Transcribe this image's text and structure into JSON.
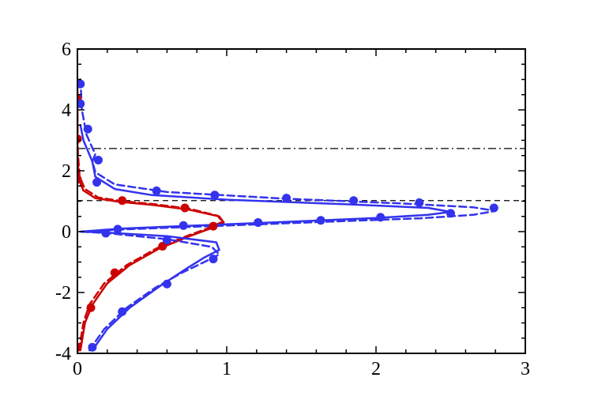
{
  "chart_data": {
    "type": "line",
    "title": "",
    "xlabel": "",
    "ylabel": "",
    "xlim": [
      0,
      3
    ],
    "ylim": [
      -4,
      6
    ],
    "grid": false,
    "legend": "none",
    "x_ticks": [
      0,
      1,
      2,
      3
    ],
    "y_ticks": [
      -4,
      -2,
      0,
      2,
      4,
      6
    ],
    "reference_lines": [
      {
        "style": "dash-dot",
        "y": 2.73,
        "color": "#000000"
      },
      {
        "style": "dashed",
        "y": 1.02,
        "color": "#000000"
      }
    ],
    "series": [
      {
        "color": "#cc0000",
        "style": "solid",
        "points": [
          [
            0.02,
            -3.9
          ],
          [
            0.05,
            -3.0
          ],
          [
            0.1,
            -2.4
          ],
          [
            0.2,
            -1.7
          ],
          [
            0.35,
            -1.1
          ],
          [
            0.55,
            -0.55
          ],
          [
            0.75,
            -0.15
          ],
          [
            0.9,
            0.12
          ],
          [
            0.98,
            0.3
          ],
          [
            0.95,
            0.5
          ],
          [
            0.75,
            0.72
          ],
          [
            0.5,
            0.88
          ],
          [
            0.28,
            0.98
          ],
          [
            0.12,
            1.1
          ],
          [
            0.04,
            1.35
          ],
          [
            0.01,
            1.7
          ],
          [
            0.0,
            2.5
          ],
          [
            0.0,
            4.0
          ],
          [
            0.0,
            5.0
          ]
        ]
      },
      {
        "color": "#cc0000",
        "style": "dashed",
        "points": [
          [
            0.01,
            -3.9
          ],
          [
            0.04,
            -3.0
          ],
          [
            0.08,
            -2.4
          ],
          [
            0.18,
            -1.7
          ],
          [
            0.33,
            -1.1
          ],
          [
            0.53,
            -0.55
          ],
          [
            0.73,
            -0.15
          ],
          [
            0.88,
            0.12
          ],
          [
            0.97,
            0.32
          ],
          [
            0.94,
            0.52
          ],
          [
            0.75,
            0.75
          ],
          [
            0.52,
            0.9
          ],
          [
            0.3,
            1.0
          ],
          [
            0.14,
            1.12
          ],
          [
            0.05,
            1.4
          ],
          [
            0.015,
            1.8
          ],
          [
            0.003,
            2.6
          ],
          [
            0.0,
            4.0
          ],
          [
            0.0,
            5.0
          ]
        ]
      },
      {
        "color": "#cc0000",
        "style": "markers",
        "points": [
          [
            0.0,
            -3.8
          ],
          [
            0.09,
            -2.5
          ],
          [
            0.25,
            -1.35
          ],
          [
            0.57,
            -0.48
          ],
          [
            0.91,
            0.18
          ],
          [
            0.72,
            0.78
          ],
          [
            0.3,
            1.02
          ],
          [
            0.0,
            1.72
          ],
          [
            0.0,
            3.05
          ],
          [
            0.0,
            4.35
          ]
        ]
      },
      {
        "color": "#3333ee",
        "style": "solid",
        "points": [
          [
            0.1,
            -3.9
          ],
          [
            0.2,
            -3.2
          ],
          [
            0.35,
            -2.5
          ],
          [
            0.55,
            -1.8
          ],
          [
            0.72,
            -1.25
          ],
          [
            0.85,
            -0.85
          ],
          [
            0.95,
            -0.6
          ],
          [
            0.93,
            -0.35
          ],
          [
            0.6,
            -0.15
          ],
          [
            0.2,
            -0.03
          ],
          [
            0.02,
            0.0
          ],
          [
            0.3,
            0.1
          ],
          [
            0.9,
            0.22
          ],
          [
            1.5,
            0.34
          ],
          [
            2.0,
            0.45
          ],
          [
            2.35,
            0.55
          ],
          [
            2.5,
            0.65
          ],
          [
            2.35,
            0.78
          ],
          [
            1.8,
            0.9
          ],
          [
            1.0,
            1.05
          ],
          [
            0.5,
            1.2
          ],
          [
            0.25,
            1.4
          ],
          [
            0.12,
            1.8
          ],
          [
            0.1,
            2.3
          ],
          [
            0.04,
            3.0
          ],
          [
            0.02,
            3.5
          ]
        ]
      },
      {
        "color": "#3333ee",
        "style": "dashed",
        "points": [
          [
            0.08,
            -3.9
          ],
          [
            0.18,
            -3.2
          ],
          [
            0.33,
            -2.5
          ],
          [
            0.52,
            -1.85
          ],
          [
            0.7,
            -1.35
          ],
          [
            0.85,
            -1.0
          ],
          [
            0.95,
            -0.75
          ],
          [
            0.9,
            -0.5
          ],
          [
            0.6,
            -0.25
          ],
          [
            0.2,
            -0.05
          ],
          [
            0.02,
            0.0
          ],
          [
            0.35,
            0.08
          ],
          [
            1.0,
            0.2
          ],
          [
            1.7,
            0.33
          ],
          [
            2.3,
            0.44
          ],
          [
            2.65,
            0.55
          ],
          [
            2.8,
            0.68
          ],
          [
            2.65,
            0.8
          ],
          [
            2.2,
            0.92
          ],
          [
            1.4,
            1.08
          ],
          [
            0.6,
            1.3
          ],
          [
            0.25,
            1.55
          ],
          [
            0.12,
            1.95
          ],
          [
            0.1,
            2.3
          ],
          [
            0.12,
            2.55
          ],
          [
            0.1,
            2.75
          ],
          [
            0.06,
            3.2
          ],
          [
            0.03,
            4.0
          ],
          [
            0.02,
            5.0
          ]
        ]
      },
      {
        "color": "#3333ee",
        "style": "markers",
        "points": [
          [
            0.1,
            -3.8
          ],
          [
            0.3,
            -2.63
          ],
          [
            0.6,
            -1.72
          ],
          [
            0.91,
            -0.9
          ],
          [
            0.6,
            -0.28
          ],
          [
            0.19,
            -0.05
          ],
          [
            0.27,
            0.08
          ],
          [
            0.71,
            0.2
          ],
          [
            1.21,
            0.3
          ],
          [
            1.63,
            0.37
          ],
          [
            2.03,
            0.47
          ],
          [
            2.5,
            0.6
          ],
          [
            2.79,
            0.78
          ],
          [
            2.29,
            0.95
          ],
          [
            1.85,
            1.02
          ],
          [
            1.4,
            1.1
          ],
          [
            0.92,
            1.2
          ],
          [
            0.53,
            1.34
          ],
          [
            0.13,
            1.62
          ],
          [
            0.14,
            2.35
          ],
          [
            0.07,
            3.37
          ],
          [
            0.02,
            4.2
          ],
          [
            0.02,
            4.85
          ]
        ]
      }
    ]
  }
}
